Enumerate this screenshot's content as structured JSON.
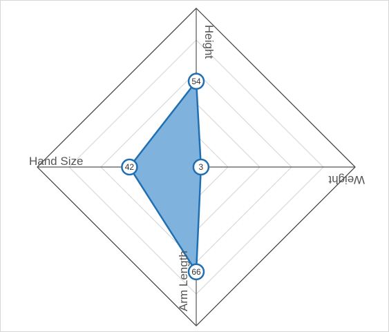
{
  "chart_data": {
    "type": "radar",
    "axes": [
      "Height",
      "Weight",
      "Arm Length",
      "Hand Size"
    ],
    "values": [
      54,
      3,
      66,
      42
    ],
    "range": [
      0,
      100
    ],
    "rings": 5,
    "grid": true,
    "color": "#1f6fb2",
    "fill_color": "#7fb2dd"
  }
}
